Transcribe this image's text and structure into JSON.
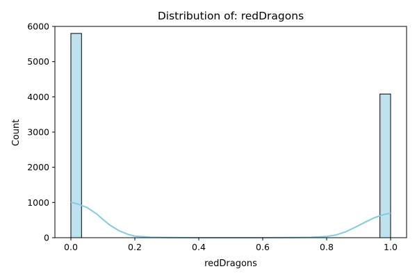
{
  "chart_data": {
    "type": "bar",
    "title": "Distribution of: redDragons",
    "xlabel": "redDragons",
    "ylabel": "Count",
    "xlim": [
      -0.05,
      1.05
    ],
    "ylim": [
      0,
      6000
    ],
    "x_ticks": [
      0.0,
      0.2,
      0.4,
      0.6,
      0.8,
      1.0
    ],
    "x_tick_labels": [
      "0.0",
      "0.2",
      "0.4",
      "0.6",
      "0.8",
      "1.0"
    ],
    "y_ticks": [
      0,
      1000,
      2000,
      3000,
      4000,
      5000,
      6000
    ],
    "y_tick_labels": [
      "0",
      "1000",
      "2000",
      "3000",
      "4000",
      "5000",
      "6000"
    ],
    "bars": [
      {
        "x0": 0.0,
        "x1": 0.0333,
        "value": 5800
      },
      {
        "x0": 0.9667,
        "x1": 1.0,
        "value": 4080
      }
    ],
    "kde_line": {
      "x": [
        0.0,
        0.02,
        0.05,
        0.08,
        0.1,
        0.12,
        0.15,
        0.18,
        0.2,
        0.25,
        0.3,
        0.4,
        0.5,
        0.6,
        0.7,
        0.75,
        0.8,
        0.83,
        0.86,
        0.89,
        0.92,
        0.95,
        0.98,
        1.0
      ],
      "y": [
        1010,
        960,
        860,
        680,
        520,
        370,
        200,
        90,
        45,
        12,
        4,
        0,
        0,
        0,
        4,
        10,
        35,
        80,
        170,
        300,
        440,
        570,
        660,
        700
      ]
    },
    "grid": false,
    "legend": false,
    "colors": {
      "bar_fill": "#bfe3ee",
      "bar_edge": "#000000",
      "kde_line": "#7ecde0"
    }
  }
}
